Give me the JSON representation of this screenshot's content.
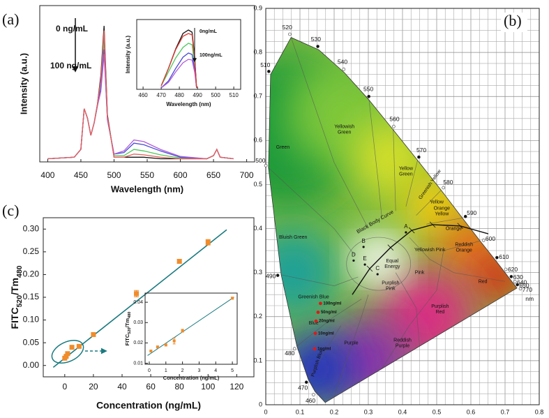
{
  "chart_data": [
    {
      "type": "line",
      "label": "(a)",
      "xlabel": "Wavelength (nm)",
      "ylabel": "Intensity (a.u.)",
      "x": [
        400,
        440,
        450,
        455,
        460,
        465,
        470,
        475,
        480,
        485,
        490,
        500,
        515,
        530,
        545,
        570,
        600,
        640,
        650,
        655,
        660,
        680
      ],
      "xlim": [
        388,
        712
      ],
      "xticks": [
        400,
        450,
        500,
        550,
        600,
        650,
        700
      ],
      "ylim": [
        0,
        1
      ],
      "series": [
        {
          "name": "0 ng/mL",
          "color": "#111111",
          "values": [
            0.02,
            0.03,
            0.08,
            0.34,
            0.28,
            0.17,
            0.25,
            0.37,
            0.55,
            0.87,
            0.3,
            0.03,
            0.03,
            0.03,
            0.03,
            0.02,
            0.02,
            0.02,
            0.04,
            0.08,
            0.03,
            0.02
          ]
        },
        {
          "color": "#4cc85a",
          "values": [
            0.02,
            0.03,
            0.08,
            0.34,
            0.28,
            0.17,
            0.25,
            0.36,
            0.5,
            0.78,
            0.28,
            0.04,
            0.04,
            0.08,
            0.07,
            0.045,
            0.025,
            0.02,
            0.04,
            0.08,
            0.03,
            0.02
          ]
        },
        {
          "color": "#4a4ad8",
          "values": [
            0.02,
            0.03,
            0.08,
            0.34,
            0.28,
            0.17,
            0.25,
            0.36,
            0.47,
            0.72,
            0.27,
            0.05,
            0.06,
            0.12,
            0.11,
            0.07,
            0.03,
            0.02,
            0.04,
            0.08,
            0.03,
            0.02
          ]
        },
        {
          "color": "#b05ad8",
          "values": [
            0.02,
            0.03,
            0.08,
            0.34,
            0.28,
            0.17,
            0.25,
            0.36,
            0.45,
            0.69,
            0.27,
            0.05,
            0.07,
            0.14,
            0.13,
            0.08,
            0.035,
            0.02,
            0.04,
            0.08,
            0.03,
            0.02
          ]
        },
        {
          "name": "100 ng/mL",
          "color": "#e8605a",
          "values": [
            0.02,
            0.03,
            0.08,
            0.34,
            0.28,
            0.17,
            0.25,
            0.37,
            0.53,
            0.84,
            0.29,
            0.03,
            0.03,
            0.05,
            0.045,
            0.03,
            0.02,
            0.02,
            0.04,
            0.08,
            0.03,
            0.02
          ]
        }
      ]
    },
    {
      "type": "line",
      "xlabel": "Wavelength (nm)",
      "ylabel": "Intensity (a.u.)",
      "x": [
        470,
        474,
        478,
        482,
        485,
        487,
        488.5,
        489.5
      ],
      "xlim": [
        456.5,
        513.8
      ],
      "xticks": [
        460,
        470,
        480,
        490,
        500,
        510
      ],
      "ylim": [
        0,
        1
      ],
      "series": [
        {
          "name": "0ng/mL",
          "color": "#111111",
          "values": [
            0.05,
            0.3,
            0.58,
            0.8,
            0.85,
            0.82,
            0.45,
            0.02
          ]
        },
        {
          "color": "#4cc85a",
          "values": [
            0.05,
            0.25,
            0.45,
            0.6,
            0.66,
            0.64,
            0.35,
            0.02
          ]
        },
        {
          "color": "#4a4ad8",
          "values": [
            0.02,
            0.12,
            0.3,
            0.46,
            0.52,
            0.5,
            0.28,
            0.02
          ]
        },
        {
          "color": "#b05ad8",
          "values": [
            0.02,
            0.1,
            0.25,
            0.38,
            0.43,
            0.42,
            0.24,
            0.02
          ]
        },
        {
          "name": "100ng/mL",
          "color": "#e03a30",
          "values": [
            0.05,
            0.3,
            0.57,
            0.76,
            0.8,
            0.78,
            0.42,
            0.02
          ]
        }
      ]
    },
    {
      "type": "scatter",
      "label": "(c)",
      "xlabel": "Concentration (ng/mL)",
      "ylabel": [
        "FITC",
        "520",
        "/Tm",
        "480"
      ],
      "x": [
        0,
        1,
        2,
        5,
        10,
        20,
        50,
        80,
        100
      ],
      "values": [
        0.016,
        0.02,
        0.026,
        0.04,
        0.042,
        0.068,
        0.158,
        0.229,
        0.271
      ],
      "errors": [
        0.003,
        0.003,
        0.003,
        0.003,
        0.003,
        0.003,
        0.007,
        0.004,
        0.006
      ],
      "color": "#f08c2a",
      "fit": {
        "x": [
          -8,
          113
        ],
        "y": [
          -0.004,
          0.2985
        ],
        "color": "#1a7a80"
      },
      "xlim": [
        -15,
        132
      ],
      "xticks": [
        0,
        20,
        40,
        60,
        80,
        100,
        120
      ],
      "ylim": [
        -0.025,
        0.325
      ],
      "yticks": [
        {
          "value": 0,
          "label": "0.00"
        },
        0.05,
        {
          "value": 0.1,
          "label": "0.10"
        },
        0.15,
        {
          "value": 0.2,
          "label": "0.20"
        },
        0.25,
        {
          "value": 0.3,
          "label": "0.30"
        }
      ]
    },
    {
      "type": "scatter",
      "xlabel": "Concentration (ng/mL)",
      "ylabel": [
        "FITC",
        "520",
        "/Tm",
        "480"
      ],
      "x": [
        0.1,
        0.5,
        1,
        1.5,
        2,
        5
      ],
      "values": [
        0.016,
        0.018,
        0.019,
        0.021,
        0.026,
        0.042
      ],
      "errors": [
        0.0005,
        0.0005,
        0.0005,
        0.0015,
        0.0007,
        0.0005
      ],
      "color": "#f08c2a",
      "fit": {
        "x": [
          -0.1,
          5.1
        ],
        "y": [
          0.0138,
          0.0425
        ],
        "color": "#1a7a80"
      },
      "xlim": [
        -0.25,
        5.29
      ],
      "xticks": [
        0,
        1,
        2,
        3,
        4,
        5
      ],
      "ylim": [
        0.0095,
        0.0445
      ],
      "yticks": [
        0.01,
        0.02,
        0.03,
        0.04
      ]
    },
    {
      "type": "cie",
      "label": "(b)",
      "xlim": [
        0,
        0.8
      ],
      "ylim": [
        0,
        0.9
      ],
      "grid": true,
      "xticks": [
        0,
        0.1,
        0.2,
        0.3,
        0.4,
        0.5,
        0.6,
        0.7,
        0.8
      ],
      "yticks": [
        0,
        0.1,
        0.2,
        0.3,
        0.4,
        0.5,
        0.6,
        0.7,
        0.8,
        0.9
      ],
      "locus": {
        "x": [
          0.174,
          0.144,
          0.124,
          0.091,
          0.045,
          0.008,
          0.014,
          0.074,
          0.155,
          0.23,
          0.302,
          0.373,
          0.444,
          0.513,
          0.575,
          0.627,
          0.666,
          0.692,
          0.708,
          0.719,
          0.726,
          0.735
        ],
        "y": [
          0.005,
          0.03,
          0.058,
          0.133,
          0.295,
          0.538,
          0.75,
          0.834,
          0.806,
          0.754,
          0.692,
          0.624,
          0.555,
          0.487,
          0.424,
          0.372,
          0.334,
          0.308,
          0.292,
          0.281,
          0.274,
          0.265
        ],
        "labels": [
          null,
          "460",
          "470",
          "480",
          "490",
          "500",
          "510",
          "520",
          "530",
          "540",
          "550",
          "560",
          "570",
          "580",
          "590",
          "600",
          "610",
          "620",
          "630",
          "640",
          "650",
          "770"
        ],
        "unit": "nm"
      },
      "regions": [
        [
          "Green"
        ],
        [
          "Yellowish",
          "Green"
        ],
        [
          "Yellow",
          "Green"
        ],
        [
          "Greenish Yellow"
        ],
        [
          "Yellow"
        ],
        [
          "Orange",
          "Yellow"
        ],
        [
          "Orange"
        ],
        [
          "Reddish",
          "Orange"
        ],
        [
          "Red"
        ],
        [
          "Yellowish Pink"
        ],
        [
          "Pink"
        ],
        [
          "Purplish",
          "Pink"
        ],
        [
          "Purplish",
          "Red"
        ],
        [
          "Reddish",
          "Purple"
        ],
        [
          "Purple"
        ],
        [
          "Purplish Blue"
        ],
        [
          "Blue"
        ],
        [
          "Greenish Blue"
        ],
        [
          "Bluish Green"
        ],
        [
          "Equal",
          "Energy"
        ]
      ],
      "blackbody": {
        "label": "Black Body Curve",
        "x": [
          0.253,
          0.304,
          0.365,
          0.427,
          0.488,
          0.569,
          0.651
        ],
        "y": [
          0.25,
          0.309,
          0.357,
          0.396,
          0.409,
          0.406,
          0.388
        ],
        "points": [
          "A",
          "B",
          "C",
          "D",
          "E"
        ]
      },
      "samples": {
        "x": [
          0.16,
          0.153,
          0.147,
          0.145,
          0.143
        ],
        "y": [
          0.23,
          0.21,
          0.19,
          0.162,
          0.127
        ],
        "labels": [
          "100ng/ml",
          "50ng/ml",
          "20ng/ml",
          "10ng/ml",
          "1ng/ml"
        ],
        "color": "#e01818"
      }
    }
  ]
}
